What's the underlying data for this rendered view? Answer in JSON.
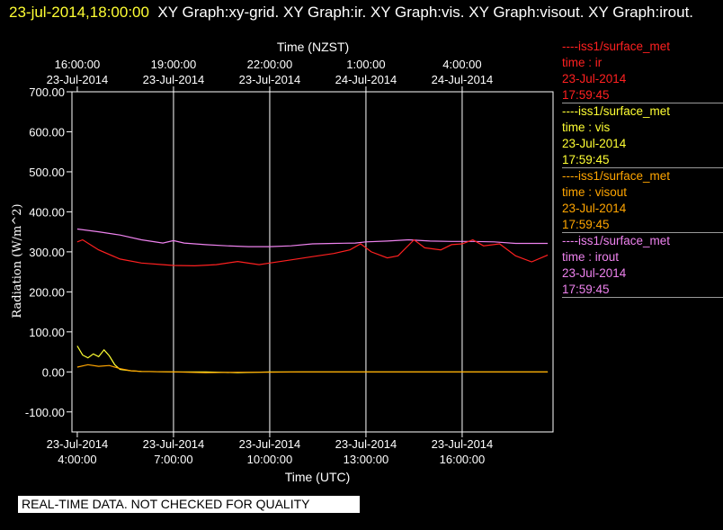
{
  "header": {
    "timestamp": "23-jul-2014,18:00:00",
    "graph_titles": "XY Graph:xy-grid.  XY Graph:ir.  XY Graph:vis.  XY Graph:visout.  XY Graph:irout."
  },
  "footer": {
    "notice": "REAL-TIME DATA. NOT CHECKED FOR QUALITY"
  },
  "legend": [
    {
      "source": "----iss1/surface_met",
      "field": "time : ir",
      "date": "23-Jul-2014",
      "time": "17:59:45",
      "color": "#ff2020"
    },
    {
      "source": "----iss1/surface_met",
      "field": "time : vis",
      "date": "23-Jul-2014",
      "time": "17:59:45",
      "color": "#ffff33"
    },
    {
      "source": "----iss1/surface_met",
      "field": "time : visout",
      "date": "23-Jul-2014",
      "time": "17:59:45",
      "color": "#ffa500"
    },
    {
      "source": "----iss1/surface_met",
      "field": "time : irout",
      "date": "23-Jul-2014",
      "time": "17:59:45",
      "color": "#ee82ee"
    }
  ],
  "chart_data": {
    "type": "line",
    "xlabel": "Time (UTC)",
    "x2label": "Time (NZST)",
    "ylabel": "Radiation  (W/m^2)",
    "xlim": [
      "2014-07-23 03:50",
      "2014-07-23 18:50"
    ],
    "ylim": [
      -150,
      700
    ],
    "grid": true,
    "y_ticks": [
      {
        "value": 700,
        "label": "700.00"
      },
      {
        "value": 600,
        "label": "600.00"
      },
      {
        "value": 500,
        "label": "500.00"
      },
      {
        "value": 400,
        "label": "400.00"
      },
      {
        "value": 300,
        "label": "300.00"
      },
      {
        "value": 200,
        "label": "200.00"
      },
      {
        "value": 100,
        "label": "100.00"
      },
      {
        "value": 0,
        "label": "0.00"
      },
      {
        "value": -100,
        "label": "-100.00"
      }
    ],
    "x_ticks": [
      {
        "value": "2014-07-23 04:00",
        "date": "23-Jul-2014",
        "time": "4:00:00"
      },
      {
        "value": "2014-07-23 07:00",
        "date": "23-Jul-2014",
        "time": "7:00:00"
      },
      {
        "value": "2014-07-23 10:00",
        "date": "23-Jul-2014",
        "time": "10:00:00"
      },
      {
        "value": "2014-07-23 13:00",
        "date": "23-Jul-2014",
        "time": "13:00:00"
      },
      {
        "value": "2014-07-23 16:00",
        "date": "23-Jul-2014",
        "time": "16:00:00"
      }
    ],
    "x2_ticks": [
      {
        "value": "2014-07-23 04:00",
        "time": "16:00:00",
        "date": "23-Jul-2014"
      },
      {
        "value": "2014-07-23 07:00",
        "time": "19:00:00",
        "date": "23-Jul-2014"
      },
      {
        "value": "2014-07-23 10:00",
        "time": "22:00:00",
        "date": "23-Jul-2014"
      },
      {
        "value": "2014-07-23 13:00",
        "time": "1:00:00",
        "date": "24-Jul-2014"
      },
      {
        "value": "2014-07-23 16:00",
        "time": "4:00:00",
        "date": "24-Jul-2014"
      }
    ],
    "series": [
      {
        "color": "#ee82ee",
        "x": [
          "2014-07-23 04:00",
          "2014-07-23 04:40",
          "2014-07-23 05:20",
          "2014-07-23 06:00",
          "2014-07-23 06:40",
          "2014-07-23 07:00",
          "2014-07-23 07:20",
          "2014-07-23 08:00",
          "2014-07-23 08:40",
          "2014-07-23 09:20",
          "2014-07-23 10:00",
          "2014-07-23 10:40",
          "2014-07-23 11:20",
          "2014-07-23 12:00",
          "2014-07-23 12:40",
          "2014-07-23 13:00",
          "2014-07-23 13:40",
          "2014-07-23 14:20",
          "2014-07-23 15:00",
          "2014-07-23 15:40",
          "2014-07-23 16:20",
          "2014-07-23 17:00",
          "2014-07-23 17:40",
          "2014-07-23 18:40"
        ],
        "y": [
          357,
          350,
          342,
          330,
          322,
          328,
          322,
          318,
          315,
          313,
          313,
          315,
          320,
          321,
          322,
          325,
          327,
          330,
          327,
          326,
          326,
          325,
          321,
          321
        ]
      },
      {
        "color": "#ff2020",
        "x": [
          "2014-07-23 04:00",
          "2014-07-23 04:10",
          "2014-07-23 04:40",
          "2014-07-23 05:20",
          "2014-07-23 06:00",
          "2014-07-23 06:40",
          "2014-07-23 07:00",
          "2014-07-23 07:40",
          "2014-07-23 08:20",
          "2014-07-23 09:00",
          "2014-07-23 09:40",
          "2014-07-23 10:00",
          "2014-07-23 10:40",
          "2014-07-23 11:20",
          "2014-07-23 12:00",
          "2014-07-23 12:30",
          "2014-07-23 12:50",
          "2014-07-23 13:10",
          "2014-07-23 13:40",
          "2014-07-23 14:00",
          "2014-07-23 14:30",
          "2014-07-23 14:50",
          "2014-07-23 15:20",
          "2014-07-23 15:40",
          "2014-07-23 16:00",
          "2014-07-23 16:20",
          "2014-07-23 16:40",
          "2014-07-23 17:10",
          "2014-07-23 17:40",
          "2014-07-23 18:10",
          "2014-07-23 18:40"
        ],
        "y": [
          325,
          330,
          305,
          282,
          272,
          268,
          266,
          265,
          268,
          276,
          268,
          272,
          280,
          288,
          296,
          305,
          320,
          300,
          285,
          290,
          330,
          310,
          305,
          318,
          320,
          330,
          315,
          320,
          290,
          275,
          292
        ]
      },
      {
        "color": "#ffff33",
        "x": [
          "2014-07-23 04:00",
          "2014-07-23 04:10",
          "2014-07-23 04:20",
          "2014-07-23 04:30",
          "2014-07-23 04:40",
          "2014-07-23 04:50",
          "2014-07-23 05:00",
          "2014-07-23 05:10",
          "2014-07-23 05:20",
          "2014-07-23 05:40",
          "2014-07-23 06:00",
          "2014-07-23 07:00",
          "2014-07-23 08:00",
          "2014-07-23 09:00",
          "2014-07-23 10:00",
          "2014-07-23 11:00",
          "2014-07-23 12:00",
          "2014-07-23 13:00",
          "2014-07-23 14:00",
          "2014-07-23 15:00",
          "2014-07-23 16:00",
          "2014-07-23 17:00",
          "2014-07-23 18:00",
          "2014-07-23 18:40"
        ],
        "y": [
          65,
          42,
          35,
          45,
          38,
          55,
          40,
          18,
          6,
          3,
          1,
          0,
          0,
          -2,
          0,
          0,
          0,
          0,
          0,
          0,
          0,
          0,
          0,
          0
        ]
      },
      {
        "color": "#ffa500",
        "x": [
          "2014-07-23 04:00",
          "2014-07-23 04:20",
          "2014-07-23 04:40",
          "2014-07-23 05:00",
          "2014-07-23 05:20",
          "2014-07-23 05:40",
          "2014-07-23 06:00",
          "2014-07-23 07:00",
          "2014-07-23 08:00",
          "2014-07-23 09:00",
          "2014-07-23 10:00",
          "2014-07-23 11:00",
          "2014-07-23 12:00",
          "2014-07-23 13:00",
          "2014-07-23 14:00",
          "2014-07-23 15:00",
          "2014-07-23 16:00",
          "2014-07-23 17:00",
          "2014-07-23 18:00",
          "2014-07-23 18:40"
        ],
        "y": [
          12,
          18,
          14,
          16,
          8,
          3,
          1,
          0,
          -2,
          -1,
          -1,
          0,
          0,
          0,
          0,
          0,
          0,
          0,
          0,
          0
        ]
      }
    ]
  }
}
